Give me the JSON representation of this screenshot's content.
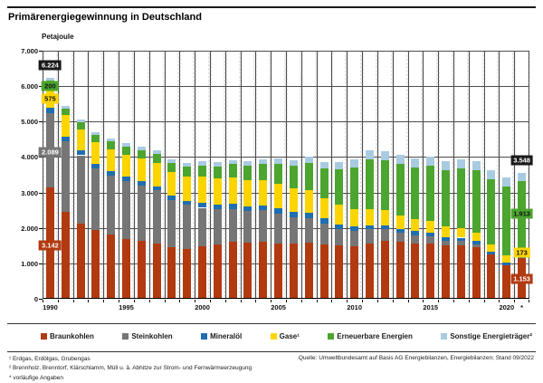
{
  "title": "Primärenergiegewinnung in Deutschland",
  "axis": {
    "unit_label": "Petajoule",
    "y_ticks": [
      "7.000",
      "6.000",
      "5.000",
      "4.000",
      "3.000",
      "2.000",
      "1.000",
      "0"
    ],
    "x_ticks": [
      "1990",
      "1995",
      "2000",
      "2005",
      "2010",
      "2015",
      "2020"
    ],
    "x_extra": "*"
  },
  "chart_data": {
    "type": "bar",
    "stacked": true,
    "title": "Primärenergiegewinnung in Deutschland",
    "ylabel": "Petajoule",
    "ylim": [
      0,
      7000
    ],
    "grid": true,
    "legend_position": "bottom",
    "years": [
      1990,
      1991,
      1992,
      1993,
      1994,
      1995,
      1996,
      1997,
      1998,
      1999,
      2000,
      2001,
      2002,
      2003,
      2004,
      2005,
      2006,
      2007,
      2008,
      2009,
      2010,
      2011,
      2012,
      2013,
      2014,
      2015,
      2016,
      2017,
      2018,
      2019,
      2020,
      2021
    ],
    "series": [
      {
        "name": "Braunkohlen",
        "legend_label": "Braunkohlen",
        "color": "#b23a10",
        "values": [
          3142,
          2455,
          2130,
          1954,
          1822,
          1699,
          1646,
          1558,
          1461,
          1417,
          1478,
          1540,
          1602,
          1575,
          1602,
          1566,
          1549,
          1584,
          1540,
          1496,
          1487,
          1549,
          1628,
          1610,
          1566,
          1566,
          1505,
          1505,
          1461,
          1240,
          942,
          1153
        ]
      },
      {
        "name": "Steinkohlen",
        "legend_label": "Steinkohlen",
        "color": "#767676",
        "values": [
          2089,
          1990,
          1920,
          1720,
          1650,
          1620,
          1550,
          1500,
          1320,
          1230,
          1090,
          980,
          940,
          900,
          890,
          830,
          740,
          690,
          580,
          480,
          440,
          420,
          340,
          250,
          230,
          190,
          130,
          120,
          80,
          0,
          0,
          0
        ]
      },
      {
        "name": "Mineralöl",
        "legend_label": "Mineralöl",
        "color": "#1e6eb0",
        "values": [
          155,
          140,
          140,
          135,
          135,
          130,
          125,
          120,
          120,
          120,
          130,
          130,
          130,
          140,
          140,
          160,
          160,
          150,
          150,
          130,
          120,
          110,
          110,
          110,
          110,
          110,
          110,
          100,
          100,
          90,
          85,
          79
        ]
      },
      {
        "name": "Gase",
        "legend_label": "Gase¹",
        "color": "#fcd500",
        "values": [
          575,
          590,
          590,
          600,
          610,
          620,
          650,
          660,
          670,
          690,
          740,
          750,
          760,
          730,
          720,
          690,
          670,
          630,
          570,
          540,
          480,
          450,
          420,
          390,
          350,
          320,
          290,
          260,
          230,
          210,
          190,
          173
        ]
      },
      {
        "name": "Erneuerbare Energien",
        "legend_label": "Erneuerbare Energien",
        "color": "#4ca52e",
        "values": [
          200,
          200,
          210,
          215,
          220,
          230,
          230,
          250,
          260,
          280,
          330,
          340,
          370,
          400,
          450,
          560,
          640,
          780,
          830,
          1000,
          1180,
          1400,
          1420,
          1440,
          1460,
          1570,
          1590,
          1700,
          1750,
          1840,
          1960,
          1913
        ]
      },
      {
        "name": "Sonstige Energieträger",
        "legend_label": "Sonstige Energieträger²",
        "color": "#a9cbe1",
        "values": [
          63,
          65,
          70,
          75,
          80,
          85,
          90,
          95,
          100,
          105,
          110,
          115,
          120,
          130,
          140,
          150,
          160,
          180,
          200,
          220,
          240,
          260,
          250,
          250,
          250,
          250,
          250,
          250,
          250,
          250,
          245,
          230
        ]
      }
    ],
    "annotations": [
      {
        "text": "6.224",
        "style": "black",
        "year": 1990,
        "value": 6600
      },
      {
        "text": "200",
        "style": "green",
        "year": 1990,
        "value": 6000
      },
      {
        "text": "575",
        "style": "yellow",
        "year": 1990,
        "value": 5650
      },
      {
        "text": "2.089",
        "style": "gray",
        "year": 1990,
        "value": 4150
      },
      {
        "text": "3.142",
        "style": "red",
        "year": 1990,
        "value": 1500
      },
      {
        "text": "3.548",
        "style": "black",
        "year": 2021,
        "value": 3900
      },
      {
        "text": "1.913",
        "style": "green",
        "year": 2021,
        "value": 2400
      },
      {
        "text": "173",
        "style": "yellow",
        "year": 2021,
        "value": 1300
      },
      {
        "text": "1.153",
        "style": "red",
        "year": 2021,
        "value": 550
      }
    ]
  },
  "footnotes": {
    "line1": "¹ Erdgas, Erdölgas, Grubengas",
    "line2": "² Brennholz, Brenntorf, Klärschlamm, Müll u. ä. Abhitze zur Strom- und Fernwärmeerzeugung",
    "line3": "* vorläufige Angaben"
  },
  "source": "Quelle: Umweltbundesamt auf Basis AG Energiebilanzen, Energiebilanzen; Stand 09/2022"
}
